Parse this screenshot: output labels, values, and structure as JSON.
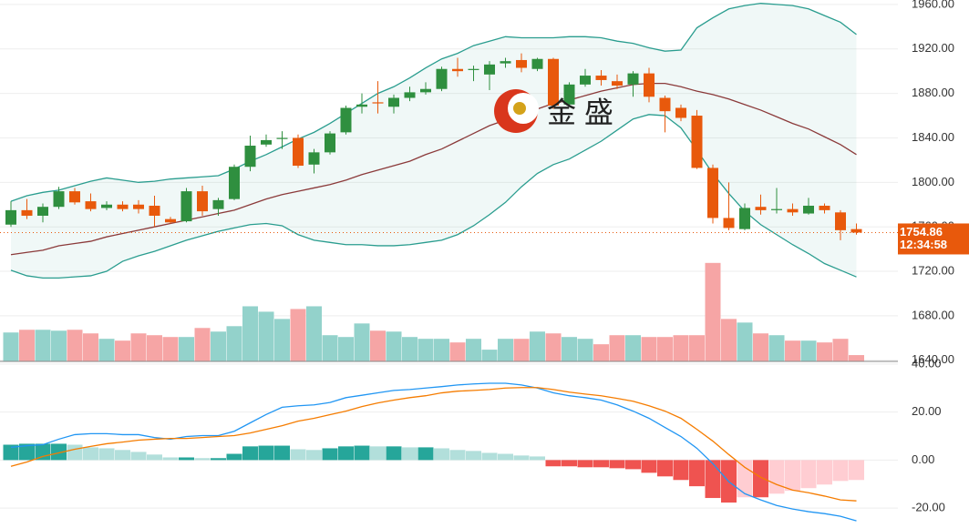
{
  "chart_data": [
    {
      "type": "candlestick",
      "watermark": "金 盛",
      "up_color": "#2f8f3f",
      "down_color": "#e8590c",
      "volume_up_color": "#93d2cb",
      "volume_down_color": "#f6a5a5",
      "band_color": "#2a9d8f",
      "mid_color": "#8b3a3a",
      "ylim": [
        1639,
        1964
      ],
      "yticks": [
        {
          "value": 1640,
          "label": "1640.00"
        },
        {
          "value": 1680,
          "label": "1680.00"
        },
        {
          "value": 1720,
          "label": "1720.00"
        },
        {
          "value": 1760,
          "label": "1760.00"
        },
        {
          "value": 1800,
          "label": "1800.00"
        },
        {
          "value": 1840,
          "label": "1840.00"
        },
        {
          "value": 1880,
          "label": "1880.00"
        },
        {
          "value": 1920,
          "label": "1920.00"
        },
        {
          "value": 1960,
          "label": "1960.00"
        }
      ],
      "grid": true,
      "last_price": 1754.86,
      "countdown": "12:34:58",
      "open": [
        1762,
        1775,
        1770,
        1778,
        1792,
        1783,
        1777,
        1780,
        1780,
        1779,
        1767,
        1765,
        1792,
        1776,
        1785,
        1814,
        1834,
        1839,
        1840,
        1816,
        1827,
        1845,
        1868,
        1872,
        1868,
        1876,
        1881,
        1884,
        1902,
        1901,
        1897,
        1907,
        1910,
        1902,
        1911,
        1870,
        1888,
        1896,
        1891,
        1888,
        1898,
        1876,
        1867,
        1860,
        1813,
        1768,
        1758,
        1778,
        1775,
        1776,
        1772,
        1779,
        1773,
        1758
      ],
      "high": [
        1783,
        1785,
        1781,
        1796,
        1795,
        1790,
        1783,
        1783,
        1784,
        1788,
        1769,
        1795,
        1797,
        1786,
        1816,
        1842,
        1843,
        1846,
        1843,
        1830,
        1846,
        1869,
        1880,
        1891,
        1879,
        1886,
        1890,
        1904,
        1912,
        1905,
        1909,
        1912,
        1916,
        1912,
        1912,
        1890,
        1902,
        1901,
        1897,
        1900,
        1903,
        1878,
        1870,
        1865,
        1816,
        1800,
        1781,
        1789,
        1795,
        1781,
        1786,
        1781,
        1775,
        1763
      ],
      "low": [
        1760,
        1767,
        1764,
        1776,
        1780,
        1774,
        1775,
        1774,
        1772,
        1760,
        1763,
        1764,
        1770,
        1770,
        1784,
        1810,
        1832,
        1830,
        1813,
        1808,
        1825,
        1843,
        1862,
        1862,
        1862,
        1873,
        1879,
        1882,
        1895,
        1891,
        1883,
        1903,
        1899,
        1900,
        1866,
        1868,
        1886,
        1887,
        1884,
        1877,
        1872,
        1845,
        1855,
        1812,
        1763,
        1757,
        1757,
        1771,
        1772,
        1770,
        1771,
        1772,
        1748,
        1753
      ],
      "close": [
        1775,
        1770,
        1778,
        1792,
        1782,
        1776,
        1780,
        1776,
        1776,
        1770,
        1764,
        1792,
        1774,
        1784,
        1814,
        1833,
        1838,
        1840,
        1815,
        1827,
        1844,
        1867,
        1870,
        1871,
        1876,
        1881,
        1884,
        1902,
        1900,
        1902,
        1906,
        1909,
        1903,
        1911,
        1869,
        1888,
        1896,
        1892,
        1887,
        1898,
        1877,
        1864,
        1858,
        1813,
        1768,
        1759,
        1777,
        1775,
        1776,
        1773,
        1779,
        1775,
        1757,
        1754.86
      ],
      "boll_upper": [
        1783,
        1788,
        1791,
        1793,
        1797,
        1801,
        1804,
        1802,
        1800,
        1801,
        1803,
        1804,
        1805,
        1806,
        1812,
        1819,
        1825,
        1832,
        1839,
        1845,
        1853,
        1862,
        1871,
        1880,
        1886,
        1894,
        1903,
        1911,
        1916,
        1923,
        1927,
        1931,
        1930,
        1930,
        1930,
        1931,
        1931,
        1930,
        1927,
        1925,
        1921,
        1918,
        1919,
        1939,
        1948,
        1956,
        1959,
        1961,
        1960,
        1959,
        1956,
        1950,
        1944,
        1933
      ],
      "boll_mid": [
        1735,
        1737,
        1739,
        1743,
        1745,
        1747,
        1751,
        1754,
        1757,
        1760,
        1763,
        1766,
        1769,
        1772,
        1775,
        1780,
        1785,
        1789,
        1792,
        1795,
        1798,
        1802,
        1807,
        1811,
        1815,
        1819,
        1825,
        1830,
        1837,
        1844,
        1851,
        1856,
        1861,
        1866,
        1871,
        1874,
        1878,
        1882,
        1885,
        1888,
        1889,
        1889,
        1886,
        1882,
        1879,
        1875,
        1870,
        1865,
        1859,
        1853,
        1848,
        1841,
        1834,
        1825
      ],
      "boll_lower": [
        1721,
        1716,
        1714,
        1714,
        1715,
        1716,
        1720,
        1729,
        1734,
        1738,
        1743,
        1748,
        1752,
        1756,
        1759,
        1762,
        1763,
        1761,
        1753,
        1748,
        1746,
        1744,
        1744,
        1743,
        1743,
        1744,
        1746,
        1748,
        1753,
        1761,
        1771,
        1782,
        1796,
        1808,
        1816,
        1821,
        1829,
        1837,
        1847,
        1857,
        1861,
        1860,
        1849,
        1829,
        1808,
        1790,
        1774,
        1762,
        1753,
        1744,
        1736,
        1727,
        1721,
        1715
      ],
      "volume_lim": [
        0,
        400
      ],
      "volume": [
        32,
        35,
        35,
        34,
        35,
        31,
        25,
        23,
        31,
        29,
        27,
        27,
        37,
        33,
        39,
        61,
        55,
        47,
        58,
        61,
        29,
        27,
        42,
        34,
        33,
        27,
        25,
        25,
        21,
        25,
        13,
        25,
        25,
        33,
        31,
        27,
        25,
        19,
        29,
        29,
        27,
        27,
        29,
        29,
        109,
        47,
        43,
        31,
        29,
        23,
        23,
        21,
        25,
        7
      ]
    },
    {
      "type": "macd",
      "ylim": [
        -28.3,
        41.1
      ],
      "yticks": [
        {
          "value": -20,
          "label": "-20.00"
        },
        {
          "value": 0,
          "label": "0.00"
        },
        {
          "value": 20,
          "label": "20.00"
        },
        {
          "value": 40,
          "label": "40.00"
        }
      ],
      "dif_color": "#2196f3",
      "dea_color": "#f57c00",
      "dif": [
        5.3,
        6,
        6.4,
        8.7,
        10.6,
        11,
        11,
        10.6,
        10.6,
        9.4,
        8.7,
        9.8,
        10.2,
        10.2,
        12,
        15.5,
        19,
        22,
        22.6,
        23,
        24,
        26,
        27,
        28,
        29,
        29.4,
        30,
        30.6,
        31.3,
        31.7,
        32,
        32,
        31.3,
        30,
        28,
        26.8,
        26,
        25,
        23,
        20.4,
        17.4,
        13.6,
        9.8,
        4.9,
        -1.5,
        -9,
        -14,
        -16.6,
        -18.9,
        -20.4,
        -21.5,
        -22.3,
        -23.4,
        -25.3
      ],
      "dea": [
        -2.6,
        -0.8,
        1.5,
        3,
        4.5,
        5.7,
        6.8,
        7.5,
        8.3,
        8.7,
        9,
        9,
        9.4,
        9.8,
        10.2,
        11.3,
        12.8,
        14.3,
        16.2,
        17.4,
        18.9,
        20.4,
        22.3,
        23.8,
        25,
        26,
        26.8,
        28,
        28.7,
        29,
        29.4,
        30,
        30.2,
        30.2,
        29.4,
        28.3,
        27.5,
        26.8,
        25.7,
        24.5,
        22.6,
        20.4,
        17.4,
        12.8,
        7.9,
        2.3,
        -3,
        -7.2,
        -10.2,
        -12.5,
        -13.6,
        -15,
        -16.6,
        -17
      ],
      "hist": [
        6.4,
        6.8,
        6.8,
        6.8,
        6.4,
        5.3,
        4.9,
        4.2,
        3.4,
        2.3,
        1.1,
        1.1,
        0.8,
        0.8,
        2.6,
        5.7,
        6,
        6,
        4.5,
        4.2,
        4.9,
        5.7,
        6,
        5.7,
        5.7,
        5.3,
        5.3,
        4.9,
        4.2,
        3.8,
        3,
        2.6,
        1.9,
        1.5,
        -2.6,
        -2.6,
        -3,
        -3,
        -3.4,
        -3.8,
        -5.3,
        -6.8,
        -8.3,
        -10.9,
        -15.8,
        -17.7,
        -15.5,
        -15.5,
        -14,
        -12.8,
        -11.7,
        -10.2,
        -8.7,
        -8.3
      ]
    }
  ]
}
